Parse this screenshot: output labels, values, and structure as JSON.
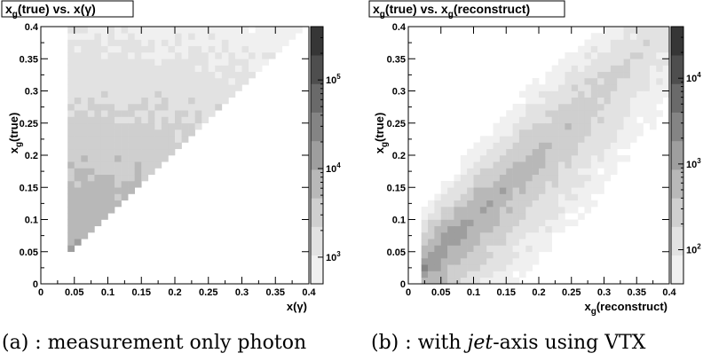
{
  "chart_data": [
    {
      "type": "heatmap",
      "title_main": "x",
      "title_sub": "g",
      "title_rest": "(true) vs. x(γ)",
      "xlabel": "x(γ)",
      "ylabel_main": "x",
      "ylabel_sub": "g",
      "ylabel_rest": "(true)",
      "xlim": [
        0,
        0.4
      ],
      "ylim": [
        0,
        0.4
      ],
      "x_ticks": [
        "0",
        "0.05",
        "0.1",
        "0.15",
        "0.2",
        "0.25",
        "0.3",
        "0.35",
        "0.4"
      ],
      "y_ticks": [
        "0",
        "0.05",
        "0.1",
        "0.15",
        "0.2",
        "0.25",
        "0.3",
        "0.35",
        "0.4"
      ],
      "colorbar": {
        "scale": "log",
        "range": [
          500,
          400000
        ],
        "labels": [
          {
            "value": 1000,
            "base": "10",
            "exp": "3"
          },
          {
            "value": 10000,
            "base": "10",
            "exp": "4"
          },
          {
            "value": 100000,
            "base": "10",
            "exp": "5"
          }
        ]
      },
      "grid": false,
      "caption": "(a) : measurement only photon"
    },
    {
      "type": "heatmap",
      "title_main": "x",
      "title_sub": "g",
      "title_rest": "(true) vs. x",
      "title_sub2": "g",
      "title_rest2": "(reconstruct)",
      "xlabel_main": "x",
      "xlabel_sub": "g",
      "xlabel_rest": "(reconstruct)",
      "ylabel_main": "x",
      "ylabel_sub": "g",
      "ylabel_rest": "(true)",
      "xlim": [
        0,
        0.4
      ],
      "ylim": [
        0,
        0.4
      ],
      "x_ticks": [
        "0",
        "0.05",
        "0.1",
        "0.15",
        "0.2",
        "0.25",
        "0.3",
        "0.35",
        "0.4"
      ],
      "y_ticks": [
        "0",
        "0.05",
        "0.1",
        "0.15",
        "0.2",
        "0.25",
        "0.3",
        "0.35",
        "0.4"
      ],
      "colorbar": {
        "scale": "log",
        "range": [
          40,
          40000
        ],
        "labels": [
          {
            "value": 100,
            "base": "10",
            "exp": "2"
          },
          {
            "value": 1000,
            "base": "10",
            "exp": "3"
          },
          {
            "value": 10000,
            "base": "10",
            "exp": "4"
          }
        ]
      },
      "grid": false,
      "caption_prefix": "(b) : with ",
      "caption_italic": "jet",
      "caption_suffix": "-axis using VTX"
    }
  ]
}
